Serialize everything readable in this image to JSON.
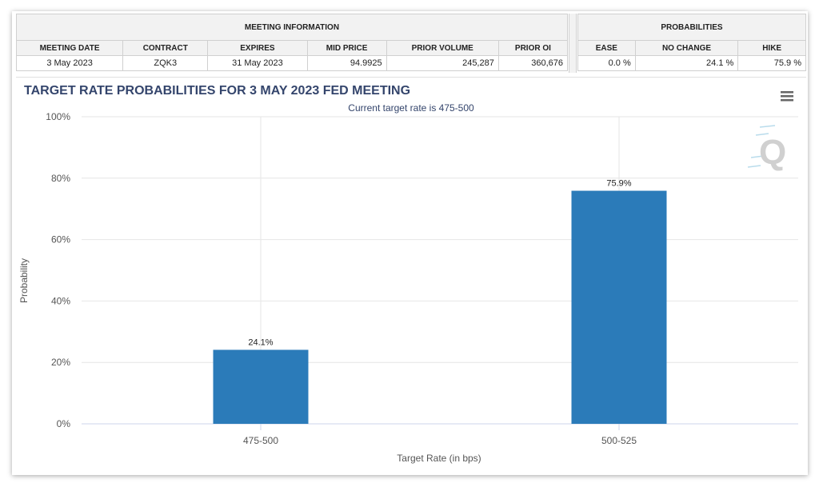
{
  "meeting_info": {
    "title": "MEETING INFORMATION",
    "columns": [
      "MEETING DATE",
      "CONTRACT",
      "EXPIRES",
      "MID PRICE",
      "PRIOR VOLUME",
      "PRIOR OI"
    ],
    "row": [
      "3 May 2023",
      "ZQK3",
      "31 May 2023",
      "94.9925",
      "245,287",
      "360,676"
    ]
  },
  "probabilities": {
    "title": "PROBABILITIES",
    "columns": [
      "EASE",
      "NO CHANGE",
      "HIKE"
    ],
    "row": [
      "0.0 %",
      "24.1 %",
      "75.9 %"
    ]
  },
  "colors": {
    "bar": "#2b7bb9",
    "title": "#34456c",
    "grid": "#e6e6e6"
  },
  "menu_icon": "hamburger-icon",
  "watermark": "Q",
  "chart_data": {
    "type": "bar",
    "title": "TARGET RATE PROBABILITIES FOR 3 MAY 2023 FED MEETING",
    "subtitle": "Current target rate is 475-500",
    "xlabel": "Target Rate (in bps)",
    "ylabel": "Probability",
    "categories": [
      "475-500",
      "500-525"
    ],
    "values": [
      24.1,
      75.9
    ],
    "data_labels": [
      "24.1%",
      "75.9%"
    ],
    "ylim": [
      0,
      100
    ],
    "yticks": [
      0,
      20,
      40,
      60,
      80,
      100
    ],
    "ytick_labels": [
      "0%",
      "20%",
      "40%",
      "60%",
      "80%",
      "100%"
    ],
    "grid": true
  }
}
